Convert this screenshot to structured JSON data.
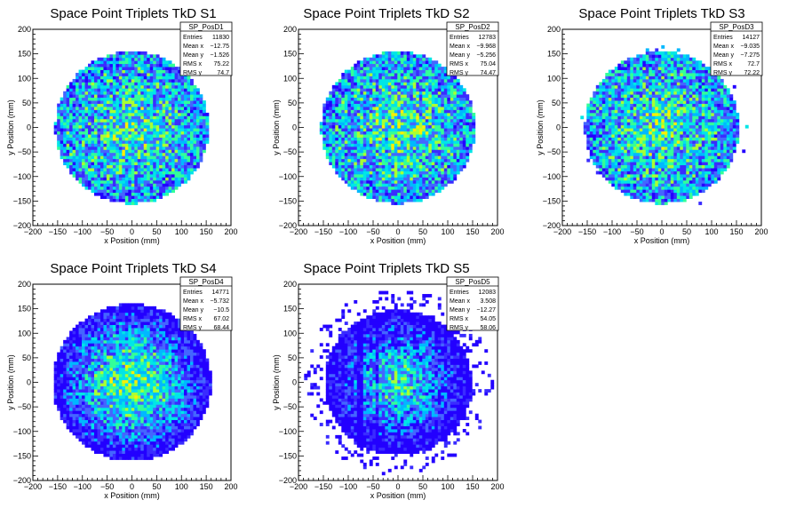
{
  "chart_data": [
    {
      "type": "heatmap",
      "title": "Space Point Triplets TkD S1",
      "xlabel": "x Position (mm)",
      "ylabel": "y Position (mm)",
      "xlim": [
        -200,
        200
      ],
      "ylim": [
        -200,
        200
      ],
      "xticks": [
        "−200",
        "−150",
        "−100",
        "−50",
        "0",
        "50",
        "100",
        "150",
        "200"
      ],
      "yticks": [
        "−200",
        "−150",
        "−100",
        "−50",
        "0",
        "50",
        "100",
        "150",
        "200"
      ],
      "stats": {
        "name": "SP_PosD1",
        "rows": [
          {
            "label": "Entries",
            "value": "11830"
          },
          {
            "label": "Mean x",
            "value": "−12.75"
          },
          {
            "label": "Mean y",
            "value": "−1.526"
          },
          {
            "label": "RMS x",
            "value": "75.22"
          },
          {
            "label": "RMS y",
            "value": "74.7"
          }
        ]
      }
    },
    {
      "type": "heatmap",
      "title": "Space Point Triplets TkD S2",
      "xlabel": "x Position (mm)",
      "ylabel": "y Position (mm)",
      "xlim": [
        -200,
        200
      ],
      "ylim": [
        -200,
        200
      ],
      "xticks": [
        "−200",
        "−150",
        "−100",
        "−50",
        "0",
        "50",
        "100",
        "150",
        "200"
      ],
      "yticks": [
        "−200",
        "−150",
        "−100",
        "−50",
        "0",
        "50",
        "100",
        "150",
        "200"
      ],
      "stats": {
        "name": "SP_PosD2",
        "rows": [
          {
            "label": "Entries",
            "value": "12783"
          },
          {
            "label": "Mean x",
            "value": "−9.968"
          },
          {
            "label": "Mean y",
            "value": "−5.256"
          },
          {
            "label": "RMS x",
            "value": "75.04"
          },
          {
            "label": "RMS y",
            "value": "74.47"
          }
        ]
      }
    },
    {
      "type": "heatmap",
      "title": "Space Point Triplets TkD S3",
      "xlabel": "x Position (mm)",
      "ylabel": "y Position (mm)",
      "xlim": [
        -200,
        200
      ],
      "ylim": [
        -200,
        200
      ],
      "xticks": [
        "−200",
        "−150",
        "−100",
        "−50",
        "0",
        "50",
        "100",
        "150",
        "200"
      ],
      "yticks": [
        "−200",
        "−150",
        "−100",
        "−50",
        "0",
        "50",
        "100",
        "150",
        "200"
      ],
      "stats": {
        "name": "SP_PosD3",
        "rows": [
          {
            "label": "Entries",
            "value": "14127"
          },
          {
            "label": "Mean x",
            "value": "−9.035"
          },
          {
            "label": "Mean y",
            "value": "−7.275"
          },
          {
            "label": "RMS x",
            "value": "72.7"
          },
          {
            "label": "RMS y",
            "value": "72.22"
          }
        ]
      }
    },
    {
      "type": "heatmap",
      "title": "Space Point Triplets TkD S4",
      "xlabel": "x Position (mm)",
      "ylabel": "y Position (mm)",
      "xlim": [
        -200,
        200
      ],
      "ylim": [
        -200,
        200
      ],
      "xticks": [
        "−200",
        "−150",
        "−100",
        "−50",
        "0",
        "50",
        "100",
        "150",
        "200"
      ],
      "yticks": [
        "−200",
        "−150",
        "−100",
        "−50",
        "0",
        "50",
        "100",
        "150",
        "200"
      ],
      "stats": {
        "name": "SP_PosD4",
        "rows": [
          {
            "label": "Entries",
            "value": "14771"
          },
          {
            "label": "Mean x",
            "value": "−5.732"
          },
          {
            "label": "Mean y",
            "value": "−10.5"
          },
          {
            "label": "RMS x",
            "value": "67.02"
          },
          {
            "label": "RMS y",
            "value": "68.44"
          }
        ]
      }
    },
    {
      "type": "heatmap",
      "title": "Space Point Triplets TkD S5",
      "xlabel": "x Position (mm)",
      "ylabel": "y Position (mm)",
      "xlim": [
        -200,
        200
      ],
      "ylim": [
        -200,
        200
      ],
      "xticks": [
        "−200",
        "−150",
        "−100",
        "−50",
        "0",
        "50",
        "100",
        "150",
        "200"
      ],
      "yticks": [
        "−200",
        "−150",
        "−100",
        "−50",
        "0",
        "50",
        "100",
        "150",
        "200"
      ],
      "stats": {
        "name": "SP_PosD5",
        "rows": [
          {
            "label": "Entries",
            "value": "12083"
          },
          {
            "label": "Mean x",
            "value": "3.508"
          },
          {
            "label": "Mean y",
            "value": "−12.27"
          },
          {
            "label": "RMS x",
            "value": "54.05"
          },
          {
            "label": "RMS y",
            "value": "58.06"
          }
        ]
      }
    }
  ],
  "colors": {
    "palette": [
      "#2300ff",
      "#3a2cff",
      "#4466ff",
      "#00b8ff",
      "#00e6e6",
      "#33ff99",
      "#aaff33",
      "#ffee00",
      "#ff8800",
      "#ee1100"
    ],
    "axis": "#000000",
    "background": "#ffffff"
  }
}
